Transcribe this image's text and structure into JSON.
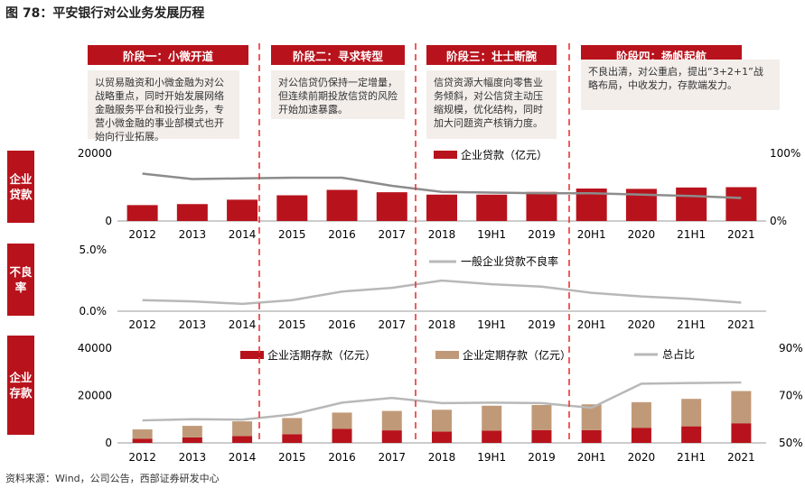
{
  "title": "图 78：平安银行对公业务发展历程",
  "source": "资料来源：Wind，公司公告，西部证券研发中心",
  "phases": [
    {
      "label": "阶段一：小微开道",
      "desc": "以贸易融资和小微金融为对公战略重点，同时开始发展网络金融服务平台和投行业务，专营小微金融的事业部模式也开始向行业拓展。"
    },
    {
      "label": "阶段二：寻求转型",
      "desc": "对公信贷仍保持一定增量，但连续前期投放信贷的风险开始加速暴露。"
    },
    {
      "label": "阶段三：壮士断腕",
      "desc": "信贷资源大幅度向零售业务倾斜，对公信贷主动压缩规模，优化结构，同时加大问题资产核销力度。"
    },
    {
      "label": "阶段四：扬帆起航",
      "desc": "不良出清，对公重启，提出“3+2+1”战略布局，中收发力，存款端发力。"
    }
  ],
  "colors": {
    "red": "#b8131c",
    "tan": "#c09a78",
    "gray": "#b8b8b8"
  },
  "side_labels": [
    "企业贷款",
    "不良率",
    "企业存款"
  ],
  "chart_data": [
    {
      "type": "bar",
      "categories": [
        "2012",
        "2013",
        "2014",
        "2015",
        "2016",
        "2017",
        "2018",
        "19H1",
        "2019",
        "20H1",
        "2020",
        "21H1",
        "2021"
      ],
      "series": [
        {
          "name": "企业贷款（亿元）",
          "values": [
            4700,
            5000,
            6300,
            7600,
            9200,
            8500,
            7800,
            7800,
            8600,
            9600,
            9500,
            9900,
            10000
          ]
        },
        {
          "name": "",
          "axis": "right",
          "values": [
            70,
            62,
            63,
            64,
            64,
            52,
            43,
            42,
            41,
            41,
            39,
            37,
            34
          ]
        }
      ],
      "ylim": [
        0,
        20000
      ],
      "y2lim": [
        0,
        100
      ],
      "yticks": [
        "0",
        "20000"
      ],
      "y2ticks": [
        "0%",
        "100%"
      ]
    },
    {
      "type": "line",
      "categories": [
        "2012",
        "2013",
        "2014",
        "2015",
        "2016",
        "2017",
        "2018",
        "19H1",
        "2019",
        "20H1",
        "2020",
        "21H1",
        "2021"
      ],
      "series": [
        {
          "name": "一般企业贷款不良率",
          "values": [
            0.9,
            0.8,
            0.6,
            0.9,
            1.6,
            1.9,
            2.5,
            2.2,
            2.0,
            1.5,
            1.2,
            1.0,
            0.7
          ]
        }
      ],
      "ylim": [
        0,
        5
      ],
      "yticks": [
        "0.0%",
        "5.0%"
      ]
    },
    {
      "type": "bar",
      "categories": [
        "2012",
        "2013",
        "2014",
        "2015",
        "2016",
        "2017",
        "2018",
        "19H1",
        "2019",
        "20H1",
        "2020",
        "21H1",
        "2021"
      ],
      "series": [
        {
          "name": "企业活期存款（亿元）",
          "values": [
            1800,
            2300,
            2900,
            3700,
            5900,
            5300,
            4800,
            5200,
            5400,
            5400,
            6400,
            7000,
            8300
          ]
        },
        {
          "name": "企业定期存款（亿元）",
          "values": [
            3900,
            4900,
            6200,
            6800,
            6900,
            8200,
            9200,
            10500,
            10600,
            10900,
            10800,
            11600,
            13600
          ]
        },
        {
          "name": "总占比",
          "axis": "right",
          "values": [
            59.5,
            60,
            59.8,
            62,
            67,
            69,
            66.8,
            67,
            66.8,
            64.8,
            75,
            75.3,
            75.5
          ]
        }
      ],
      "ylim": [
        0,
        40000
      ],
      "y2lim": [
        50,
        90
      ],
      "yticks": [
        "0",
        "20000",
        "40000"
      ],
      "y2ticks": [
        "50%",
        "70%",
        "90%"
      ]
    }
  ]
}
